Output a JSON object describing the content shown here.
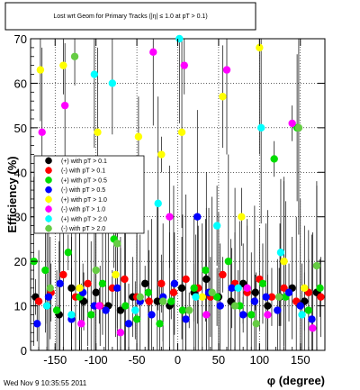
{
  "chart_data": {
    "type": "scatter",
    "title": "Lost wrt Geom for Primary Tracks (|η| ≤ 1.0 at pT > 0.1)",
    "xlabel": "φ (degree)",
    "ylabel": "Efficiency (%)",
    "xlim": [
      -180,
      180
    ],
    "ylim": [
      0,
      70
    ],
    "x_ticks": [
      -150,
      -100,
      -50,
      0,
      50,
      100,
      150
    ],
    "y_ticks": [
      0,
      10,
      20,
      30,
      40,
      50,
      60,
      70
    ],
    "grid": true,
    "legend_position": "left-middle",
    "series": [
      {
        "name": "(+) with pT > 0.1",
        "color": "#000000",
        "x": [
          -174,
          -160,
          -145,
          -130,
          -115,
          -100,
          -85,
          -70,
          -55,
          -40,
          -25,
          -10,
          5,
          20,
          35,
          50,
          65,
          80,
          95,
          110,
          125,
          140,
          155,
          170
        ],
        "y": [
          12,
          10,
          8,
          14,
          11,
          13,
          10,
          9,
          12,
          15,
          11,
          10,
          14,
          13,
          16,
          12,
          11,
          15,
          13,
          10,
          12,
          14,
          11,
          13
        ]
      },
      {
        "name": "(-) with pT > 0.1",
        "color": "#ff0000",
        "x": [
          -170,
          -155,
          -140,
          -125,
          -110,
          -95,
          -80,
          -65,
          -50,
          -35,
          -20,
          -5,
          10,
          25,
          40,
          55,
          70,
          85,
          100,
          115,
          130,
          145,
          160,
          175
        ],
        "y": [
          11,
          13,
          17,
          12,
          15,
          10,
          14,
          16,
          12,
          11,
          15,
          13,
          16,
          14,
          12,
          17,
          15,
          13,
          16,
          12,
          14,
          11,
          13,
          12
        ]
      },
      {
        "name": "(+) with pT > 0.5",
        "color": "#00dd00",
        "x": [
          -176,
          -162,
          -148,
          -134,
          -120,
          -106,
          -92,
          -78,
          -64,
          -50,
          -36,
          -22,
          -8,
          6,
          20,
          34,
          48,
          62,
          76,
          90,
          104,
          118,
          132,
          146,
          160,
          174
        ],
        "y": [
          20,
          18,
          9,
          22,
          12,
          8,
          15,
          25,
          10,
          7,
          13,
          6,
          11,
          9,
          14,
          18,
          12,
          20,
          10,
          8,
          15,
          43,
          12,
          50,
          9,
          14
        ]
      },
      {
        "name": "(-) with pT > 0.5",
        "color": "#0000ff",
        "x": [
          -172,
          -158,
          -144,
          -130,
          -116,
          -102,
          -88,
          -74,
          -60,
          -46,
          -32,
          -18,
          -4,
          10,
          24,
          38,
          52,
          66,
          80,
          94,
          108,
          122,
          136,
          150,
          164
        ],
        "y": [
          6,
          12,
          15,
          7,
          13,
          10,
          9,
          14,
          6,
          11,
          8,
          12,
          15,
          7,
          30,
          13,
          10,
          14,
          8,
          11,
          12,
          9,
          13,
          10,
          7
        ]
      },
      {
        "name": "(+) with pT > 1.0",
        "color": "#ffff00",
        "x": [
          -168,
          -140,
          -120,
          -98,
          -76,
          -48,
          -20,
          5,
          30,
          55,
          78,
          100,
          130,
          155
        ],
        "y": [
          63,
          64,
          14,
          49,
          17,
          48,
          44,
          49,
          12,
          57,
          30,
          68,
          20,
          14
        ]
      },
      {
        "name": "(-) with pT > 1.0",
        "color": "#ff00ff",
        "x": [
          -166,
          -138,
          -118,
          -96,
          -70,
          -30,
          -10,
          8,
          35,
          60,
          85,
          110,
          140,
          165
        ],
        "y": [
          49,
          55,
          6,
          10,
          4,
          67,
          30,
          64,
          8,
          63,
          14,
          8,
          51,
          5
        ]
      },
      {
        "name": "(+) with pT > 2.0",
        "color": "#00ffff",
        "x": [
          -160,
          -130,
          -102,
          -80,
          -52,
          -24,
          2,
          22,
          48,
          74,
          102,
          126,
          152
        ],
        "y": [
          10,
          8,
          62,
          60,
          9,
          33,
          70,
          12,
          28,
          14,
          50,
          22,
          8
        ]
      },
      {
        "name": "(-) with pT > 2.0",
        "color": "#66cc44",
        "x": [
          -156,
          -126,
          -100,
          -74,
          -46,
          -18,
          14,
          42,
          70,
          96,
          124,
          148,
          170
        ],
        "y": [
          14,
          66,
          18,
          24,
          12,
          11,
          9,
          13,
          10,
          6,
          12,
          50,
          19
        ]
      }
    ]
  },
  "footer": {
    "timestamp": "Wed Nov  9 10:35:55 2011"
  }
}
